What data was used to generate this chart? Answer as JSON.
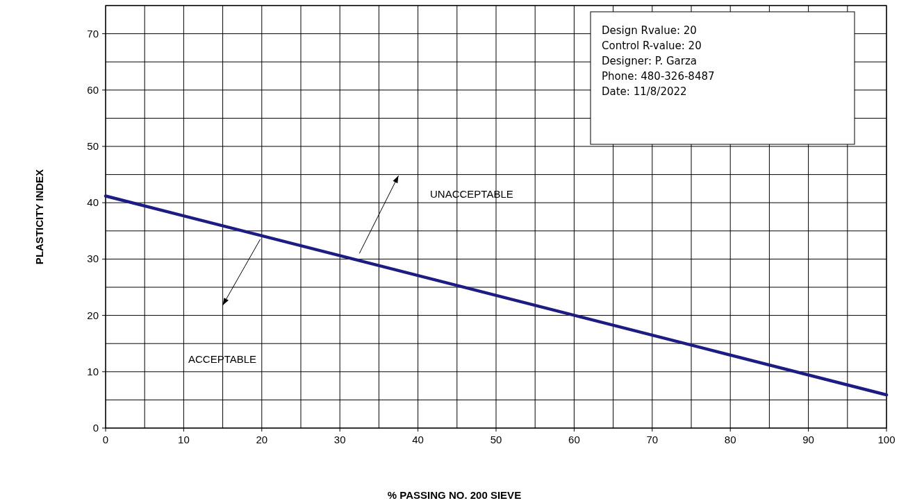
{
  "chart_data": {
    "type": "line",
    "xlabel": "% PASSING NO. 200 SIEVE",
    "ylabel": "PLASTICITY INDEX",
    "x": [
      0,
      100
    ],
    "series": [
      {
        "color": "#1c1c82",
        "values": [
          41.2,
          5.9
        ]
      }
    ],
    "xlim": [
      0,
      100
    ],
    "ylim": [
      0,
      75
    ],
    "xticks": [
      0,
      {
        "value": 5,
        "label": null
      },
      10,
      {
        "value": 15,
        "label": null
      },
      20,
      {
        "value": 25,
        "label": null
      },
      30,
      {
        "value": 35,
        "label": null
      },
      40,
      {
        "value": 45,
        "label": null
      },
      50,
      {
        "value": 55,
        "label": null
      },
      60,
      {
        "value": 65,
        "label": null
      },
      70,
      {
        "value": 75,
        "label": null
      },
      80,
      {
        "value": 85,
        "label": null
      },
      90,
      {
        "value": 95,
        "label": null
      },
      100
    ],
    "yticks": [
      0,
      {
        "value": 5,
        "label": null
      },
      10,
      {
        "value": 15,
        "label": null
      },
      20,
      {
        "value": 25,
        "label": null
      },
      30,
      {
        "value": 35,
        "label": null
      },
      40,
      {
        "value": 45,
        "label": null
      },
      50,
      {
        "value": 55,
        "label": null
      },
      60,
      {
        "value": 65,
        "label": null
      },
      70,
      {
        "value": 75,
        "label": null
      }
    ],
    "grid": true,
    "marker": "none",
    "line_style": "solid",
    "annotations": [
      "Design Rvalue: 20",
      "Control R-value: 20",
      "Designer: P. Garza",
      "Phone: 480-326-8487",
      "Date: 11/8/2022",
      "UNACCEPTABLE",
      "ACCEPTABLE"
    ]
  }
}
